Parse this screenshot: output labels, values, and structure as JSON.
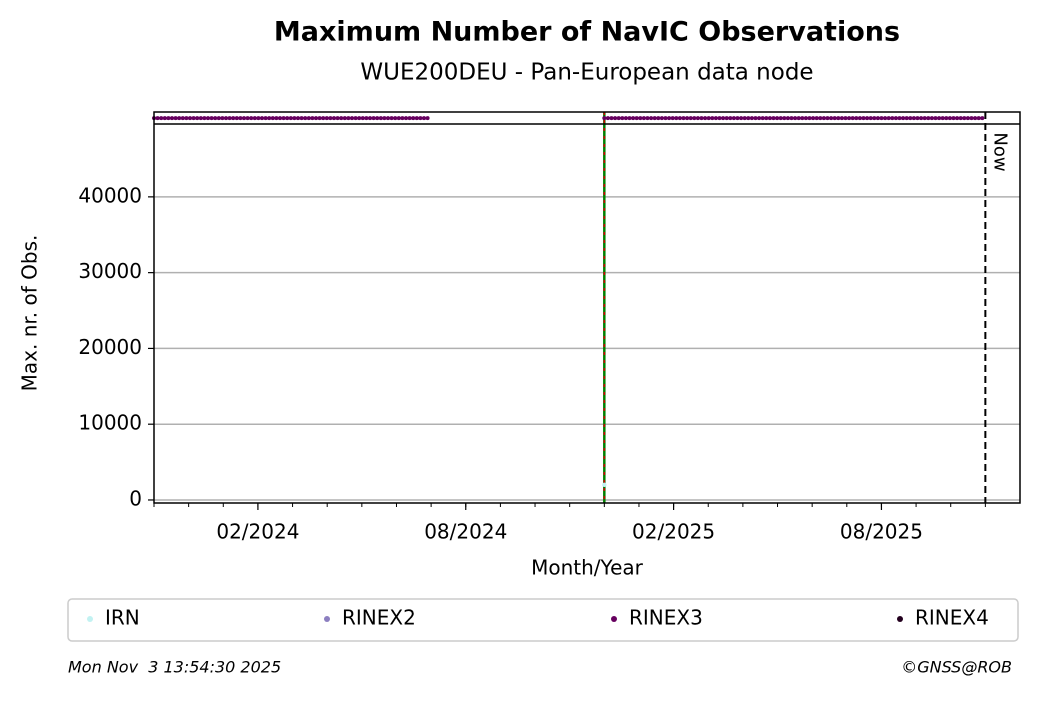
{
  "chart_data": {
    "type": "line",
    "title": "Maximum Number of NavIC Observations",
    "subtitle": "WUE200DEU - Pan-European data node",
    "xlabel": "Month/Year",
    "ylabel": "Max. nr. of Obs.",
    "x": [
      "2023-11",
      "2023-12",
      "2024-01",
      "2024-02",
      "2024-03",
      "2024-04",
      "2024-05",
      "2024-06",
      "2024-07",
      "2024-08",
      "2024-09",
      "2024-10",
      "2024-11",
      "2024-12",
      "2025-01",
      "2025-02",
      "2025-03",
      "2025-04",
      "2025-05",
      "2025-06",
      "2025-07",
      "2025-08",
      "2025-09",
      "2025-10",
      "2025-11"
    ],
    "series": [
      {
        "name": "IRN",
        "color": "#c2f2f2",
        "values": [
          null,
          null,
          null,
          null,
          null,
          null,
          null,
          null,
          null,
          null,
          null,
          null,
          null,
          2000,
          null,
          null,
          null,
          null,
          null,
          null,
          null,
          null,
          null,
          null,
          null
        ]
      },
      {
        "name": "RINEX2",
        "color": "#8c7fc0",
        "values": [
          null,
          null,
          null,
          null,
          null,
          null,
          null,
          null,
          null,
          null,
          null,
          null,
          null,
          null,
          null,
          null,
          null,
          null,
          null,
          null,
          null,
          null,
          null,
          null,
          null
        ]
      },
      {
        "name": "RINEX3",
        "color": "#66005f",
        "values": [
          50400,
          50400,
          50400,
          50400,
          50400,
          50400,
          50400,
          50400,
          50400,
          null,
          null,
          null,
          null,
          50400,
          50400,
          50400,
          50400,
          50400,
          50400,
          50400,
          50400,
          50400,
          50400,
          50400,
          50400
        ]
      },
      {
        "name": "RINEX4",
        "color": "#23001e",
        "values": [
          null,
          null,
          null,
          null,
          null,
          null,
          null,
          null,
          null,
          null,
          null,
          null,
          null,
          null,
          null,
          null,
          null,
          null,
          null,
          null,
          null,
          null,
          null,
          null,
          null
        ]
      }
    ],
    "xlim": [
      "2023-11",
      "2025-12"
    ],
    "xticks": [
      {
        "value": "2024-02",
        "label": "02/2024"
      },
      {
        "value": "2024-08",
        "label": "08/2024"
      },
      {
        "value": "2025-02",
        "label": "02/2025"
      },
      {
        "value": "2025-08",
        "label": "08/2025"
      }
    ],
    "ylim": [
      -400,
      51200
    ],
    "yticks": [
      0,
      10000,
      20000,
      30000,
      40000
    ],
    "grid": true,
    "event_line": {
      "x": "2024-12",
      "color": "#008000",
      "dash_color": "#d00000"
    },
    "now_line": {
      "x": "2025-11",
      "label": "Now"
    },
    "legend": "bottom",
    "timestamp": "Mon Nov  3 13:54:30 2025",
    "credit": "©GNSS@ROB"
  }
}
